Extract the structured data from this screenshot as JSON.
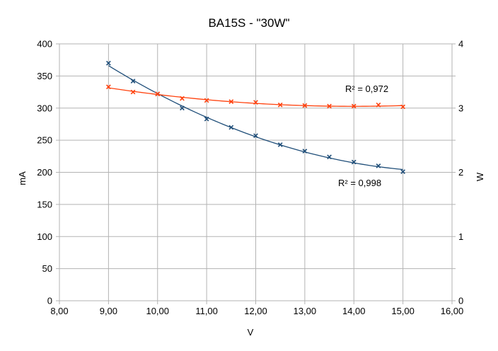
{
  "chart_data": {
    "type": "scatter",
    "title": "BA15S - \"30W\"",
    "xlabel": "V",
    "ylabel": "mA",
    "y2label": "W",
    "xlim": [
      8,
      16
    ],
    "ylim": [
      0,
      400
    ],
    "y2lim": [
      0,
      4
    ],
    "x_ticks": [
      "8,00",
      "9,00",
      "10,00",
      "11,00",
      "12,00",
      "13,00",
      "14,00",
      "15,00",
      "16,00"
    ],
    "y_ticks": [
      "0",
      "50",
      "100",
      "150",
      "200",
      "250",
      "300",
      "350",
      "400"
    ],
    "y2_ticks": [
      "0",
      "1",
      "2",
      "3",
      "4"
    ],
    "grid": true,
    "series": [
      {
        "axis": "left",
        "color": "#1f4e79",
        "x": [
          9.0,
          9.5,
          10.0,
          10.5,
          11.0,
          11.5,
          12.0,
          12.5,
          13.0,
          13.5,
          14.0,
          14.5,
          15.0
        ],
        "values": [
          370,
          342,
          322,
          300,
          283,
          270,
          257,
          243,
          233,
          224,
          216,
          210,
          201
        ],
        "trendline": "polynomial",
        "r2_label": "R² = 0,998"
      },
      {
        "axis": "right",
        "color": "#ff420e",
        "x": [
          9.0,
          9.5,
          10.0,
          10.5,
          11.0,
          11.5,
          12.0,
          12.5,
          13.0,
          13.5,
          14.0,
          14.5,
          15.0
        ],
        "values": [
          3.33,
          3.25,
          3.22,
          3.15,
          3.12,
          3.1,
          3.09,
          3.05,
          3.04,
          3.03,
          3.03,
          3.05,
          3.02
        ],
        "trendline": "polynomial",
        "r2_label": "R² = 0,972"
      }
    ]
  }
}
